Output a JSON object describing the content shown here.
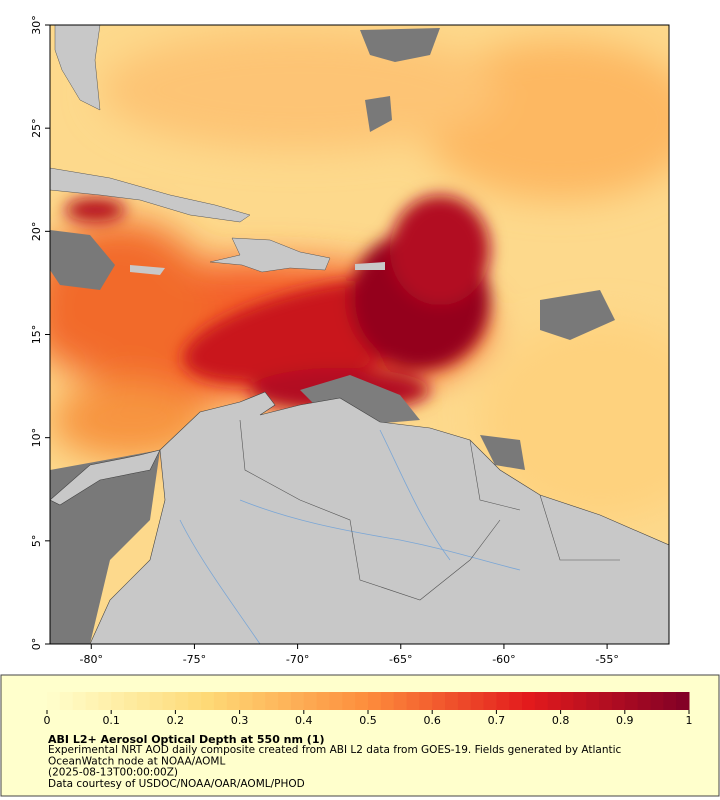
{
  "map": {
    "lon_range": [
      -82,
      -52
    ],
    "lat_range": [
      0,
      30
    ],
    "lon_ticks": [
      {
        "value": -80,
        "label": "-80°"
      },
      {
        "value": -75,
        "label": "-75°"
      },
      {
        "value": -70,
        "label": "-70°"
      },
      {
        "value": -65,
        "label": "-65°"
      },
      {
        "value": -60,
        "label": "-60°"
      },
      {
        "value": -55,
        "label": "-55°"
      }
    ],
    "lat_ticks": [
      {
        "value": 0,
        "label": "0°"
      },
      {
        "value": 5,
        "label": "5°"
      },
      {
        "value": 10,
        "label": "10°"
      },
      {
        "value": 15,
        "label": "15°"
      },
      {
        "value": 20,
        "label": "20°"
      },
      {
        "value": 25,
        "label": "25°"
      },
      {
        "value": 30,
        "label": "30°"
      }
    ]
  },
  "colorbar": {
    "range": [
      0,
      1
    ],
    "ticks": [
      0,
      0.1,
      0.2,
      0.3,
      0.4,
      0.5,
      0.6,
      0.7,
      0.8,
      0.9,
      1
    ],
    "colors": [
      "#ffffcc",
      "#fed976",
      "#fd8d3c",
      "#e31a1c",
      "#800026"
    ]
  },
  "caption": {
    "title": "ABI L2+ Aerosol Optical Depth at 550 nm (1)",
    "lines": [
      "Experimental NRT AOD daily composite created from ABI L2 data from GOES-19. Fields generated by Atlantic",
      "OceanWatch node at NOAA/AOML",
      "(2025-08-13T00:00:00Z)",
      "Data courtesy of USDOC/NOAA/OAR/AOML/PHOD"
    ]
  }
}
